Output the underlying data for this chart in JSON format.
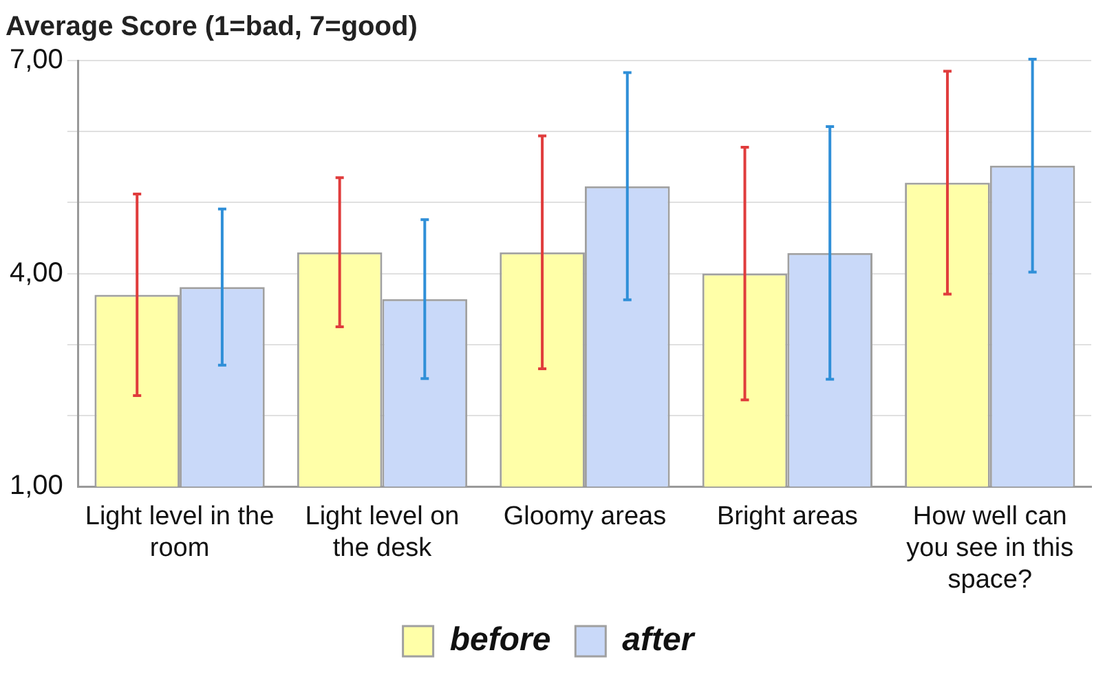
{
  "chart_data": {
    "type": "bar",
    "title": "Average Score (1=bad, 7=good)",
    "categories": [
      "Light level in the room",
      "Light level on the desk",
      "Gloomy areas",
      "Bright areas",
      "How well can you see in this space?"
    ],
    "series": [
      {
        "name": "before",
        "color": "#ffffa8",
        "values": [
          3.7,
          4.3,
          4.3,
          4.0,
          5.28
        ],
        "errors": [
          1.42,
          1.05,
          1.64,
          1.78,
          1.57
        ]
      },
      {
        "name": "after",
        "color": "#c9d9f9",
        "values": [
          3.81,
          3.64,
          5.23,
          4.29,
          5.52
        ],
        "errors": [
          1.1,
          1.12,
          1.6,
          1.78,
          1.5
        ]
      }
    ],
    "ylim": [
      1,
      7
    ],
    "yticks": [
      {
        "value": 1,
        "label": "1,00"
      },
      {
        "value": 2,
        "label": null
      },
      {
        "value": 3,
        "label": null
      },
      {
        "value": 4,
        "label": "4,00"
      },
      {
        "value": 5,
        "label": null
      },
      {
        "value": 6,
        "label": null
      },
      {
        "value": 7,
        "label": "7,00"
      }
    ],
    "grid": "y",
    "legend": "bottom"
  }
}
